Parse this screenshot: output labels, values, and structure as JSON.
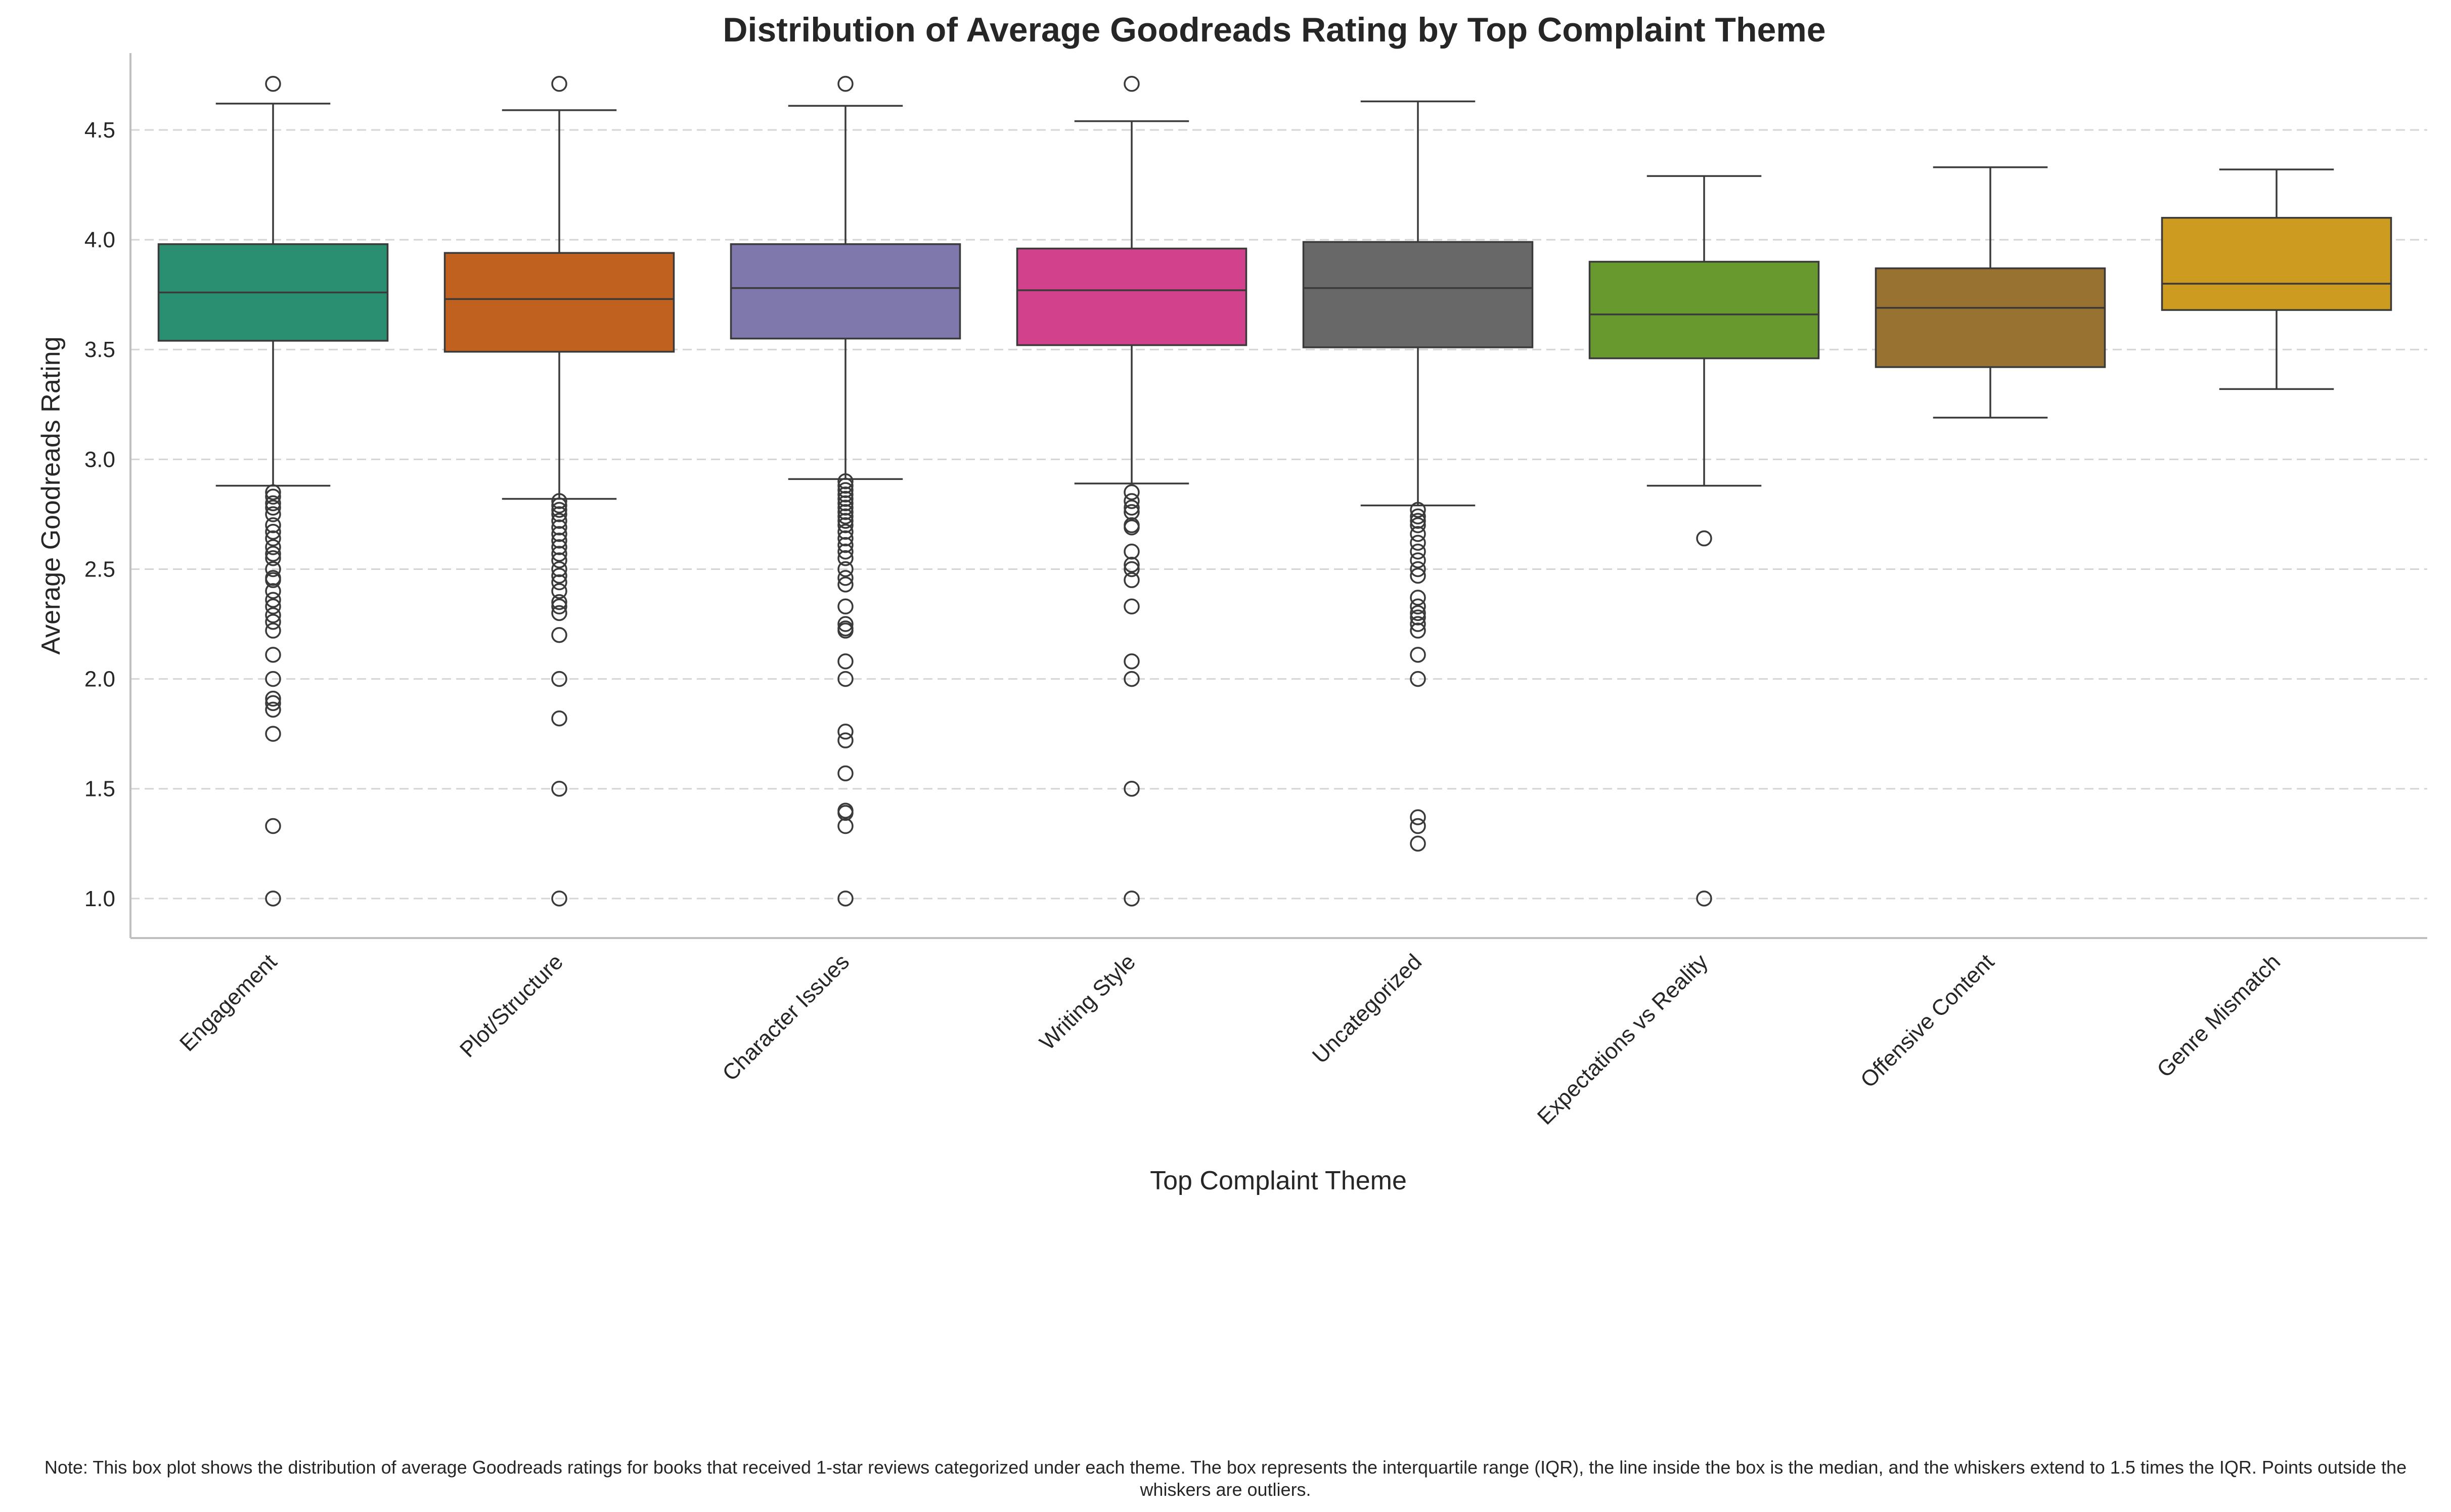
{
  "chart_data": {
    "type": "box",
    "title": "Distribution of Average Goodreads Rating by Top Complaint Theme",
    "xlabel": "Top Complaint Theme",
    "ylabel": "Average Goodreads Rating",
    "ylim": [
      0.82,
      4.85
    ],
    "yticks": [
      {
        "value": 1.0,
        "label": "1.0"
      },
      {
        "value": 1.5,
        "label": "1.5"
      },
      {
        "value": 2.0,
        "label": "2.0"
      },
      {
        "value": 2.5,
        "label": "2.5"
      },
      {
        "value": 3.0,
        "label": "3.0"
      },
      {
        "value": 3.5,
        "label": "3.5"
      },
      {
        "value": 4.0,
        "label": "4.0"
      },
      {
        "value": 4.5,
        "label": "4.5"
      }
    ],
    "grid": "y-dashed",
    "categories": [
      "Engagement",
      "Plot/Structure",
      "Character Issues",
      "Writing Style",
      "Uncategorized",
      "Expectations vs Reality",
      "Offensive Content",
      "Genre Mismatch"
    ],
    "boxes": [
      {
        "category": "Engagement",
        "color": "#2a8f70",
        "whisker_low": 2.88,
        "q1": 3.54,
        "median": 3.76,
        "q3": 3.98,
        "whisker_high": 4.62,
        "outliers": [
          4.71,
          2.85,
          2.83,
          2.8,
          2.78,
          2.75,
          2.7,
          2.67,
          2.64,
          2.6,
          2.57,
          2.55,
          2.5,
          2.46,
          2.45,
          2.4,
          2.36,
          2.33,
          2.29,
          2.26,
          2.22,
          2.11,
          2.0,
          1.91,
          1.89,
          1.86,
          1.75,
          1.33,
          1.0
        ]
      },
      {
        "category": "Plot/Structure",
        "color": "#c0611f",
        "whisker_low": 2.82,
        "q1": 3.49,
        "median": 3.73,
        "q3": 3.94,
        "whisker_high": 4.59,
        "outliers": [
          4.71,
          2.81,
          2.79,
          2.77,
          2.75,
          2.72,
          2.69,
          2.66,
          2.63,
          2.6,
          2.57,
          2.54,
          2.5,
          2.47,
          2.44,
          2.4,
          2.35,
          2.33,
          2.3,
          2.2,
          2.0,
          1.82,
          1.5,
          1.0
        ]
      },
      {
        "category": "Character Issues",
        "color": "#7e78ad",
        "whisker_low": 2.91,
        "q1": 3.55,
        "median": 3.78,
        "q3": 3.98,
        "whisker_high": 4.61,
        "outliers": [
          4.71,
          2.9,
          2.88,
          2.86,
          2.84,
          2.82,
          2.8,
          2.78,
          2.76,
          2.74,
          2.72,
          2.7,
          2.67,
          2.64,
          2.61,
          2.58,
          2.55,
          2.5,
          2.46,
          2.43,
          2.33,
          2.25,
          2.23,
          2.22,
          2.08,
          2.0,
          1.76,
          1.72,
          1.57,
          1.4,
          1.39,
          1.33,
          1.0
        ]
      },
      {
        "category": "Writing Style",
        "color": "#d2418c",
        "whisker_low": 2.89,
        "q1": 3.52,
        "median": 3.77,
        "q3": 3.96,
        "whisker_high": 4.54,
        "outliers": [
          4.71,
          2.85,
          2.81,
          2.78,
          2.76,
          2.7,
          2.69,
          2.58,
          2.52,
          2.5,
          2.45,
          2.33,
          2.08,
          2.0,
          1.5,
          1.0
        ]
      },
      {
        "category": "Uncategorized",
        "color": "#686868",
        "whisker_low": 2.79,
        "q1": 3.51,
        "median": 3.78,
        "q3": 3.99,
        "whisker_high": 4.63,
        "outliers": [
          2.77,
          2.74,
          2.72,
          2.7,
          2.66,
          2.62,
          2.58,
          2.54,
          2.5,
          2.47,
          2.37,
          2.33,
          2.3,
          2.28,
          2.25,
          2.22,
          2.11,
          2.0,
          1.37,
          1.33,
          1.25
        ]
      },
      {
        "category": "Expectations vs Reality",
        "color": "#67992f",
        "whisker_low": 2.88,
        "q1": 3.46,
        "median": 3.66,
        "q3": 3.9,
        "whisker_high": 4.29,
        "outliers": [
          2.64,
          1.0
        ]
      },
      {
        "category": "Offensive Content",
        "color": "#987230",
        "whisker_low": 3.19,
        "q1": 3.42,
        "median": 3.69,
        "q3": 3.87,
        "whisker_high": 4.33,
        "outliers": []
      },
      {
        "category": "Genre Mismatch",
        "color": "#cc9b1f",
        "whisker_low": 3.32,
        "q1": 3.68,
        "median": 3.8,
        "q3": 4.1,
        "whisker_high": 4.32,
        "outliers": []
      }
    ]
  },
  "note": "Note: This box plot shows the distribution of average Goodreads ratings for books that received 1-star reviews categorized under each theme. The box represents the interquartile range (IQR), the line inside the box is the median, and the whiskers extend to 1.5 times the IQR. Points outside the whiskers are outliers."
}
